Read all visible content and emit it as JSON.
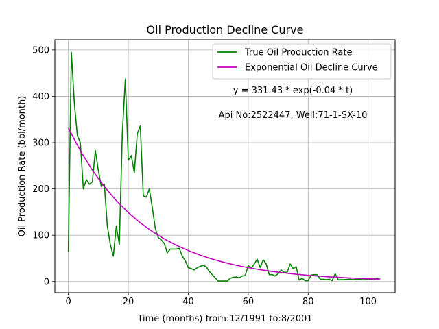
{
  "chart_data": {
    "type": "line",
    "title": "Oil Production Decline Curve",
    "xlabel": "Time (months) from:12/1991 to:8/2001",
    "ylabel": "Oil Production Rate (bbl/month)",
    "xlim": [
      -4.5,
      109
    ],
    "ylim": [
      -24,
      522
    ],
    "xticks": [
      0,
      20,
      40,
      60,
      80,
      100
    ],
    "yticks": [
      0,
      100,
      200,
      300,
      400,
      500
    ],
    "grid": true,
    "legend_position": "top-right",
    "annotations": [
      "y = 331.43 * exp(-0.04 * t)",
      "Api No:2522447, Well:71-1-SX-10"
    ],
    "series": [
      {
        "name": "True Oil Production Rate",
        "color": "#008000",
        "x": [
          0,
          1,
          2,
          3,
          4,
          5,
          6,
          7,
          8,
          9,
          10,
          11,
          12,
          13,
          14,
          15,
          16,
          17,
          18,
          19,
          20,
          21,
          22,
          23,
          24,
          25,
          26,
          27,
          28,
          29,
          30,
          31,
          32,
          33,
          34,
          35,
          36,
          37,
          38,
          39,
          40,
          41,
          42,
          43,
          44,
          45,
          46,
          47,
          48,
          49,
          50,
          51,
          52,
          53,
          54,
          55,
          56,
          57,
          58,
          59,
          60,
          61,
          62,
          63,
          64,
          65,
          66,
          67,
          68,
          69,
          70,
          71,
          72,
          73,
          74,
          75,
          76,
          77,
          78,
          79,
          80,
          81,
          82,
          83,
          84,
          85,
          86,
          87,
          88,
          89,
          90,
          91,
          92,
          93,
          94,
          95,
          96,
          97,
          98,
          99,
          100,
          101,
          102,
          103,
          104
        ],
        "y": [
          64,
          495,
          385,
          315,
          300,
          200,
          220,
          210,
          215,
          283,
          240,
          205,
          210,
          120,
          80,
          55,
          120,
          80,
          320,
          437,
          262,
          272,
          235,
          320,
          336,
          185,
          182,
          200,
          160,
          115,
          95,
          90,
          82,
          62,
          70,
          70,
          70,
          72,
          55,
          45,
          30,
          28,
          25,
          30,
          33,
          35,
          32,
          22,
          15,
          8,
          1,
          1,
          1,
          1,
          7,
          9,
          10,
          8,
          12,
          13,
          35,
          28,
          38,
          48,
          30,
          47,
          38,
          15,
          15,
          12,
          17,
          25,
          20,
          20,
          38,
          28,
          32,
          3,
          7,
          2,
          2,
          14,
          15,
          15,
          5,
          5,
          4,
          5,
          2,
          17,
          4,
          4,
          4,
          5,
          5,
          4,
          5,
          5,
          4,
          4,
          5,
          5,
          5,
          7,
          5
        ]
      },
      {
        "name": "Exponential Oil Decline Curve",
        "color": "#bf00bf",
        "function": "331.43 * exp(-0.04 * t)",
        "x": [
          0,
          4,
          8,
          12,
          16,
          20,
          24,
          28,
          32,
          36,
          40,
          44,
          48,
          52,
          56,
          60,
          64,
          68,
          72,
          76,
          80,
          84,
          88,
          92,
          96,
          100,
          104
        ],
        "y": [
          331.4,
          282.4,
          240.6,
          205.0,
          174.7,
          148.9,
          126.8,
          108.1,
          92.1,
          78.5,
          66.9,
          57.0,
          48.5,
          41.4,
          35.2,
          30.0,
          25.6,
          21.8,
          18.6,
          15.8,
          13.5,
          11.5,
          9.8,
          8.4,
          7.1,
          6.1,
          5.2
        ]
      }
    ]
  }
}
